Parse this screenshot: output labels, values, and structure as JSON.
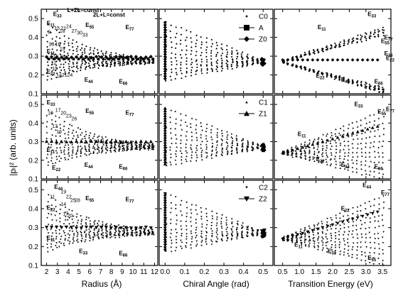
{
  "figure": {
    "ylabel": "|pₗ|² (arb. units)",
    "xlabels": [
      "Radius (Å)",
      "Chiral Angle (rad)",
      "Transition Energy (eV)"
    ]
  },
  "chart_data": {
    "type": "scatter",
    "rows": 3,
    "cols": 3,
    "ylim": [
      0.1,
      0.55
    ],
    "yticks": [
      0.1,
      0.2,
      0.3,
      0.4,
      0.5
    ],
    "xaxes": [
      {
        "label": "Radius (Å)",
        "xlim": [
          1.5,
          12.3
        ],
        "ticks": [
          2,
          3,
          4,
          5,
          6,
          7,
          8,
          9,
          10,
          11,
          12
        ]
      },
      {
        "label": "Chiral Angle (rad)",
        "xlim": [
          -0.03,
          0.55
        ],
        "ticks": [
          0.0,
          0.1,
          0.2,
          0.3,
          0.4,
          0.5
        ],
        "ticklabels": [
          "0.0",
          "0.1",
          "0.2",
          "0.3",
          "0.4",
          "0.5"
        ]
      },
      {
        "label": "Transition Energy (eV)",
        "xlim": [
          0.25,
          3.75
        ],
        "ticks": [
          0.5,
          1.0,
          1.5,
          2.0,
          2.5,
          3.0,
          3.5
        ],
        "ticklabels": [
          "0.5",
          "1.0",
          "1.5",
          "2.0",
          "2.5",
          "3.0",
          "3.5"
        ]
      }
    ],
    "legends": [
      [
        {
          "name": "C0",
          "marker": "diamond-small"
        },
        {
          "name": "A",
          "marker": "square-line"
        },
        {
          "name": "Z0",
          "marker": "diamond-line"
        }
      ],
      [
        {
          "name": "C1",
          "marker": "triangle-small"
        },
        {
          "name": "Z1",
          "marker": "triangle-line"
        }
      ],
      [
        {
          "name": "C2",
          "marker": "tri-down-small"
        },
        {
          "name": "Z2",
          "marker": "tri-down-line"
        }
      ]
    ],
    "panels": [
      {
        "row": 0,
        "col": 0,
        "annotations": [
          {
            "text": "E",
            "sub": "33",
            "x": 2.6,
            "y": 0.515
          },
          {
            "text": "E",
            "sub": "11",
            "x": 2.0,
            "y": 0.465
          },
          {
            "text": "E",
            "sub": "11",
            "x": 2.0,
            "y": 0.315
          },
          {
            "text": "E",
            "sub": "22",
            "x": 2.0,
            "y": 0.205
          },
          {
            "text": "E",
            "sub": "55",
            "x": 5.6,
            "y": 0.455
          },
          {
            "text": "E",
            "sub": "77",
            "x": 9.3,
            "y": 0.445
          },
          {
            "text": "E",
            "sub": "44",
            "x": 5.5,
            "y": 0.165
          },
          {
            "text": "E",
            "sub": "66",
            "x": 8.7,
            "y": 0.155
          },
          {
            "text": "L+2L=const",
            "x": 3.9,
            "y": 0.535
          },
          {
            "text": "2L+L=const",
            "x": 6.3,
            "y": 0.51
          }
        ],
        "family_labels": [
          {
            "t": "9",
            "x": 2.1,
            "y": 0.42
          },
          {
            "t": "15",
            "x": 2.7,
            "y": 0.44
          },
          {
            "t": "18",
            "x": 3.2,
            "y": 0.425
          },
          {
            "t": "21",
            "x": 3.3,
            "y": 0.44
          },
          {
            "t": "24",
            "x": 3.8,
            "y": 0.45
          },
          {
            "t": "27",
            "x": 4.3,
            "y": 0.425
          },
          {
            "t": "30",
            "x": 4.8,
            "y": 0.415
          },
          {
            "t": "33",
            "x": 5.3,
            "y": 0.405
          },
          {
            "t": "13",
            "x": 2.2,
            "y": 0.355
          },
          {
            "t": "16",
            "x": 2.8,
            "y": 0.355
          },
          {
            "t": "19",
            "x": 3.2,
            "y": 0.33
          },
          {
            "t": "15",
            "x": 2.6,
            "y": 0.29
          },
          {
            "t": "18",
            "x": 3.2,
            "y": 0.29
          },
          {
            "t": "12",
            "x": 2.4,
            "y": 0.255
          },
          {
            "t": "15",
            "x": 2.5,
            "y": 0.225
          },
          {
            "t": "18",
            "x": 2.9,
            "y": 0.185
          },
          {
            "t": "21",
            "x": 3.4,
            "y": 0.19
          },
          {
            "t": "24",
            "x": 3.9,
            "y": 0.19
          }
        ]
      },
      {
        "row": 0,
        "col": 1,
        "annotations": []
      },
      {
        "row": 0,
        "col": 2,
        "annotations": [
          {
            "text": "E",
            "sub": "33",
            "x": 3.05,
            "y": 0.515
          },
          {
            "text": "E",
            "sub": "11",
            "x": 1.55,
            "y": 0.445
          },
          {
            "text": "E",
            "sub": "77",
            "x": 3.55,
            "y": 0.39
          },
          {
            "text": "E",
            "sub": "55",
            "x": 3.45,
            "y": 0.37
          },
          {
            "text": "E",
            "sub": "33",
            "x": 3.55,
            "y": 0.305
          },
          {
            "text": "E",
            "sub": "22",
            "x": 3.6,
            "y": 0.28
          },
          {
            "text": "E",
            "sub": "22",
            "x": 1.5,
            "y": 0.185
          },
          {
            "text": "E",
            "sub": "44",
            "x": 2.25,
            "y": 0.165
          },
          {
            "text": "E",
            "sub": "66",
            "x": 3.25,
            "y": 0.155
          }
        ]
      },
      {
        "row": 1,
        "col": 0,
        "annotations": [
          {
            "text": "E",
            "sub": "33",
            "x": 2.0,
            "y": 0.5
          },
          {
            "text": "E",
            "sub": "11",
            "x": 2.0,
            "y": 0.245
          },
          {
            "text": "E",
            "sub": "22",
            "x": 2.5,
            "y": 0.15
          },
          {
            "text": "E",
            "sub": "55",
            "x": 5.6,
            "y": 0.455
          },
          {
            "text": "E",
            "sub": "77",
            "x": 9.3,
            "y": 0.445
          },
          {
            "text": "E",
            "sub": "44",
            "x": 5.5,
            "y": 0.165
          },
          {
            "text": "E",
            "sub": "66",
            "x": 8.7,
            "y": 0.155
          }
        ],
        "family_labels": [
          {
            "t": "10",
            "x": 2.1,
            "y": 0.445
          },
          {
            "t": "17",
            "x": 2.8,
            "y": 0.46
          },
          {
            "t": "20",
            "x": 3.3,
            "y": 0.445
          },
          {
            "t": "23",
            "x": 3.8,
            "y": 0.43
          },
          {
            "t": "26",
            "x": 4.3,
            "y": 0.415
          },
          {
            "t": "13",
            "x": 2.5,
            "y": 0.375
          },
          {
            "t": "16",
            "x": 2.9,
            "y": 0.345
          }
        ]
      },
      {
        "row": 1,
        "col": 1,
        "annotations": []
      },
      {
        "row": 1,
        "col": 2,
        "annotations": [
          {
            "text": "E",
            "sub": "33",
            "x": 2.65,
            "y": 0.49
          },
          {
            "text": "E",
            "sub": "55",
            "x": 3.35,
            "y": 0.45
          },
          {
            "text": "E",
            "sub": "77",
            "x": 3.6,
            "y": 0.465
          },
          {
            "text": "E",
            "sub": "11",
            "x": 0.95,
            "y": 0.33
          },
          {
            "text": "E",
            "sub": "22",
            "x": 1.5,
            "y": 0.195
          },
          {
            "text": "E",
            "sub": "44",
            "x": 2.25,
            "y": 0.165
          },
          {
            "text": "E",
            "sub": "66",
            "x": 3.25,
            "y": 0.155
          }
        ]
      },
      {
        "row": 2,
        "col": 0,
        "annotations": [
          {
            "text": "E",
            "sub": "44",
            "x": 2.7,
            "y": 0.505
          },
          {
            "text": "E",
            "sub": "22",
            "x": 2.0,
            "y": 0.395
          },
          {
            "text": "E",
            "sub": "55",
            "x": 5.6,
            "y": 0.445
          },
          {
            "text": "E",
            "sub": "77",
            "x": 9.3,
            "y": 0.44
          },
          {
            "text": "E",
            "sub": "11",
            "x": 2.0,
            "y": 0.235
          },
          {
            "text": "E",
            "sub": "33",
            "x": 5.0,
            "y": 0.165
          },
          {
            "text": "E",
            "sub": "66",
            "x": 8.7,
            "y": 0.155
          }
        ],
        "family_labels": [
          {
            "t": "11",
            "x": 2.3,
            "y": 0.455
          },
          {
            "t": "19",
            "x": 3.3,
            "y": 0.48
          },
          {
            "t": "22",
            "x": 3.8,
            "y": 0.455
          },
          {
            "t": "25",
            "x": 4.2,
            "y": 0.435
          },
          {
            "t": "28",
            "x": 4.6,
            "y": 0.435
          },
          {
            "t": "14",
            "x": 3.3,
            "y": 0.415
          },
          {
            "t": "17",
            "x": 3.5,
            "y": 0.365
          },
          {
            "t": "20",
            "x": 3.9,
            "y": 0.355
          }
        ]
      },
      {
        "row": 2,
        "col": 1,
        "annotations": []
      },
      {
        "row": 2,
        "col": 2,
        "annotations": [
          {
            "text": "E",
            "sub": "44",
            "x": 2.9,
            "y": 0.515
          },
          {
            "text": "E",
            "sub": "77",
            "x": 3.45,
            "y": 0.475
          },
          {
            "text": "E",
            "sub": "22",
            "x": 2.25,
            "y": 0.39
          },
          {
            "text": "E",
            "sub": "11",
            "x": 0.85,
            "y": 0.2
          },
          {
            "text": "E",
            "sub": "33",
            "x": 1.85,
            "y": 0.165
          },
          {
            "text": "E",
            "sub": "55",
            "x": 3.05,
            "y": 0.13
          }
        ]
      }
    ]
  },
  "colors": {
    "ink": "#000000",
    "background": "#ffffff"
  }
}
